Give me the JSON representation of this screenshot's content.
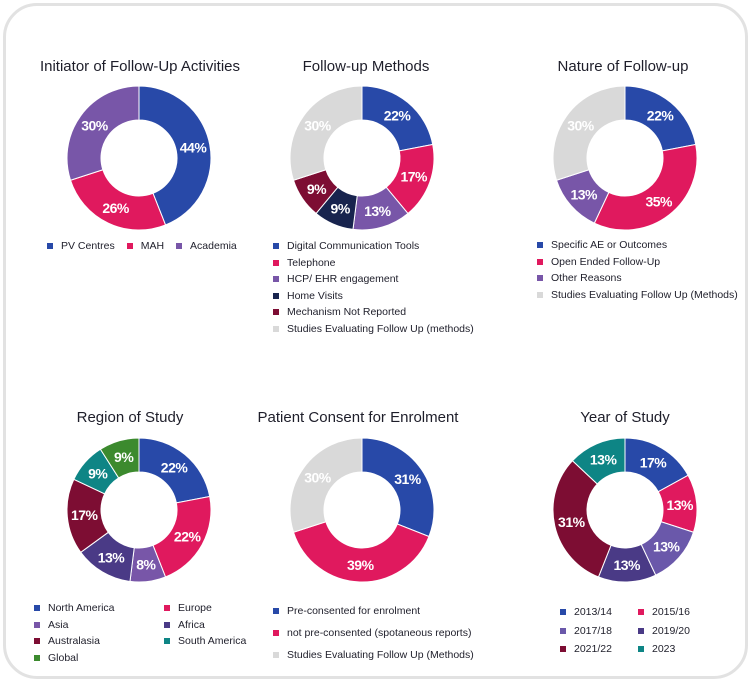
{
  "colors": {
    "blue": "#2849a8",
    "pink": "#e0195e",
    "purple": "#7856a8",
    "navy": "#18244e",
    "maroon": "#7d0d33",
    "grey": "#d9d9d9",
    "teal": "#0e8585",
    "green": "#3c8a2e",
    "purple2": "#6a58aa",
    "indigo": "#4a3a86"
  },
  "chart_data": [
    {
      "id": "initiator",
      "type": "pie",
      "title": "Initiator of Follow-Up Activities",
      "legend_layout": "row",
      "slices": [
        {
          "label": "PV Centres",
          "value": 44,
          "display": "44%",
          "color": "#2849a8"
        },
        {
          "label": "MAH",
          "value": 26,
          "display": "26%",
          "color": "#e0195e"
        },
        {
          "label": "Academia",
          "value": 30,
          "display": "30%",
          "color": "#7856a8"
        }
      ]
    },
    {
      "id": "methods",
      "type": "pie",
      "title": "Follow-up Methods",
      "legend_layout": "column",
      "slices": [
        {
          "label": "Digital Communication Tools",
          "value": 22,
          "display": "22%",
          "color": "#2849a8"
        },
        {
          "label": "Telephone",
          "value": 17,
          "display": "17%",
          "color": "#e0195e"
        },
        {
          "label": "HCP/ EHR engagement",
          "value": 13,
          "display": "13%",
          "color": "#7856a8"
        },
        {
          "label": "Home Visits",
          "value": 9,
          "display": "9%",
          "color": "#18244e"
        },
        {
          "label": "Mechanism Not Reported",
          "value": 9,
          "display": "9%",
          "color": "#7d0d33"
        },
        {
          "label": "Studies Evaluating Follow Up (methods)",
          "value": 30,
          "display": "30%",
          "color": "#d9d9d9"
        }
      ]
    },
    {
      "id": "nature",
      "type": "pie",
      "title": "Nature of Follow-up",
      "legend_layout": "column",
      "slices": [
        {
          "label": "Specific AE or Outcomes",
          "value": 22,
          "display": "22%",
          "color": "#2849a8"
        },
        {
          "label": "Open Ended Follow-Up",
          "value": 35,
          "display": "35%",
          "color": "#e0195e"
        },
        {
          "label": "Other Reasons",
          "value": 13,
          "display": "13%",
          "color": "#7856a8"
        },
        {
          "label": "Studies Evaluating Follow Up (Methods)",
          "value": 30,
          "display": "30%",
          "color": "#d9d9d9"
        }
      ]
    },
    {
      "id": "region",
      "type": "pie",
      "title": "Region of Study",
      "legend_layout": "grid",
      "slices": [
        {
          "label": "North America",
          "value": 22,
          "display": "22%",
          "color": "#2849a8"
        },
        {
          "label": "Europe",
          "value": 22,
          "display": "22%",
          "color": "#e0195e"
        },
        {
          "label": "Asia",
          "value": 8,
          "display": "8%",
          "color": "#7856a8"
        },
        {
          "label": "Africa",
          "value": 13,
          "display": "13%",
          "color": "#4a3a86"
        },
        {
          "label": "Australasia",
          "value": 17,
          "display": "17%",
          "color": "#7d0d33"
        },
        {
          "label": "South America",
          "value": 9,
          "display": "9%",
          "color": "#0e8585"
        },
        {
          "label": "Global",
          "value": 9,
          "display": "9%",
          "color": "#3c8a2e"
        }
      ]
    },
    {
      "id": "consent",
      "type": "pie",
      "title": "Patient Consent for Enrolment",
      "legend_layout": "column-spaced",
      "slices": [
        {
          "label": "Pre-consented for enrolment",
          "value": 31,
          "display": "31%",
          "color": "#2849a8"
        },
        {
          "label": "not pre-consented (spotaneous reports)",
          "value": 39,
          "display": "39%",
          "color": "#e0195e"
        },
        {
          "label": "Studies Evaluating Follow Up (Methods)",
          "value": 30,
          "display": "30%",
          "color": "#d9d9d9"
        }
      ]
    },
    {
      "id": "year",
      "type": "pie",
      "title": "Year of Study",
      "legend_layout": "grid2",
      "slices": [
        {
          "label": "2013/14",
          "value": 17,
          "display": "17%",
          "color": "#2849a8"
        },
        {
          "label": "2015/16",
          "value": 13,
          "display": "13%",
          "color": "#e0195e"
        },
        {
          "label": "2017/18",
          "value": 13,
          "display": "13%",
          "color": "#6a58aa"
        },
        {
          "label": "2019/20",
          "value": 13,
          "display": "13%",
          "color": "#4a3a86"
        },
        {
          "label": "2021/22",
          "value": 31,
          "display": "31%",
          "color": "#7d0d33"
        },
        {
          "label": "2023",
          "value": 13,
          "display": "13%",
          "color": "#0e8585"
        }
      ]
    }
  ]
}
